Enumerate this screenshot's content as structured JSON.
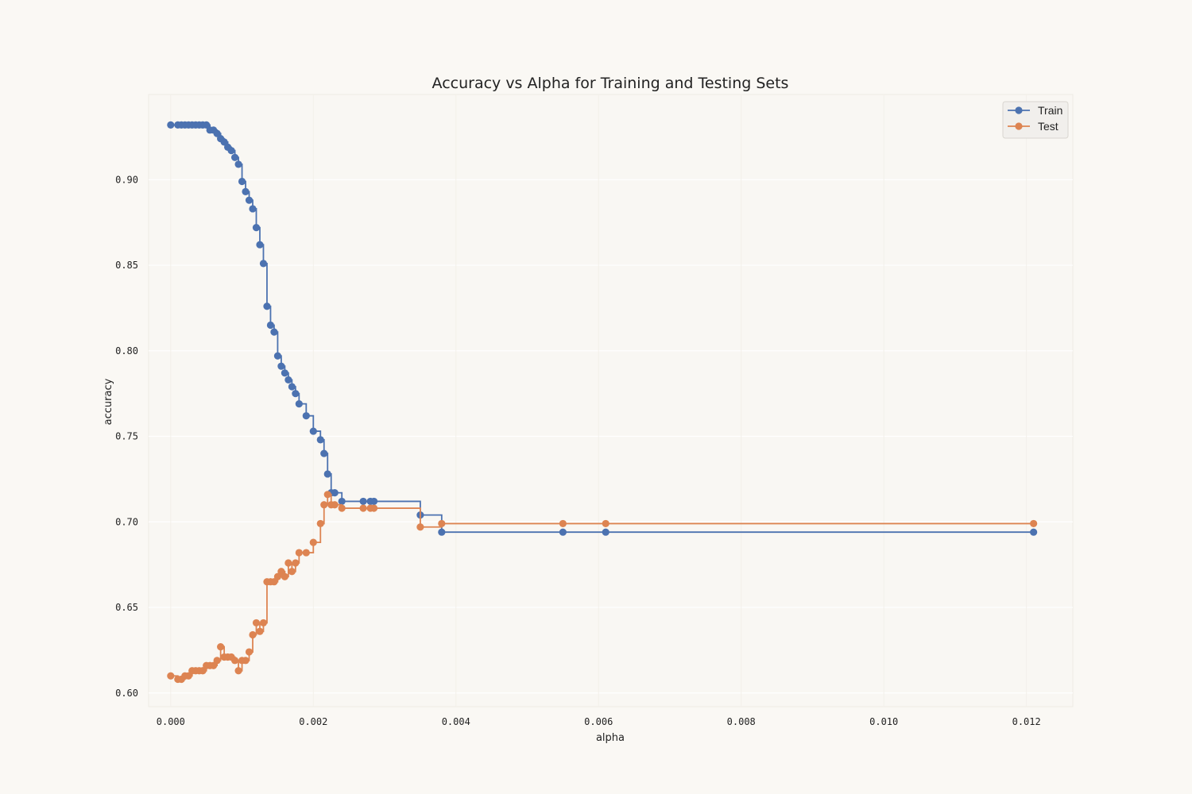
{
  "chart_data": {
    "type": "line",
    "title": "Accuracy vs Alpha for Training and Testing Sets",
    "xlabel": "alpha",
    "ylabel": "accuracy",
    "xlim": [
      -0.00031,
      0.01265
    ],
    "ylim": [
      0.592,
      0.9498
    ],
    "xticks": [
      0.0,
      0.002,
      0.004,
      0.006,
      0.008,
      0.01,
      0.012
    ],
    "xtick_labels": [
      "0.000",
      "0.002",
      "0.004",
      "0.006",
      "0.008",
      "0.010",
      "0.012"
    ],
    "yticks": [
      0.6,
      0.65,
      0.7,
      0.75,
      0.8,
      0.85,
      0.9
    ],
    "ytick_labels": [
      "0.60",
      "0.65",
      "0.70",
      "0.75",
      "0.80",
      "0.85",
      "0.90"
    ],
    "grid": true,
    "legend_position": "top-right",
    "drawstyle": "steps-post",
    "x": [
      0.0,
      0.0001,
      0.00015,
      0.0002,
      0.00025,
      0.0003,
      0.00035,
      0.0004,
      0.00045,
      0.0005,
      0.00055,
      0.0006,
      0.00065,
      0.0007,
      0.00075,
      0.0008,
      0.00085,
      0.0009,
      0.00095,
      0.001,
      0.00105,
      0.0011,
      0.00115,
      0.0012,
      0.00125,
      0.0013,
      0.00135,
      0.0014,
      0.00145,
      0.0015,
      0.00155,
      0.0016,
      0.00165,
      0.0017,
      0.00175,
      0.0018,
      0.0019,
      0.002,
      0.0021,
      0.00215,
      0.0022,
      0.00225,
      0.0023,
      0.0024,
      0.0027,
      0.0028,
      0.00285,
      0.0035,
      0.0038,
      0.0055,
      0.0061,
      0.0121
    ],
    "series": [
      {
        "name": "Train",
        "color": "#4c72b0",
        "values": [
          0.932,
          0.932,
          0.932,
          0.932,
          0.932,
          0.932,
          0.932,
          0.932,
          0.932,
          0.932,
          0.929,
          0.929,
          0.927,
          0.924,
          0.922,
          0.919,
          0.917,
          0.913,
          0.909,
          0.899,
          0.893,
          0.888,
          0.883,
          0.872,
          0.862,
          0.851,
          0.826,
          0.815,
          0.811,
          0.797,
          0.791,
          0.787,
          0.783,
          0.779,
          0.775,
          0.769,
          0.762,
          0.753,
          0.748,
          0.74,
          0.728,
          0.717,
          0.717,
          0.712,
          0.712,
          0.712,
          0.712,
          0.704,
          0.694,
          0.694,
          0.694,
          0.694
        ]
      },
      {
        "name": "Test",
        "color": "#dd8452",
        "values": [
          0.61,
          0.608,
          0.608,
          0.61,
          0.61,
          0.613,
          0.613,
          0.613,
          0.613,
          0.616,
          0.616,
          0.616,
          0.619,
          0.627,
          0.621,
          0.621,
          0.621,
          0.619,
          0.613,
          0.619,
          0.619,
          0.624,
          0.634,
          0.641,
          0.636,
          0.641,
          0.665,
          0.665,
          0.665,
          0.668,
          0.671,
          0.668,
          0.676,
          0.671,
          0.676,
          0.682,
          0.682,
          0.688,
          0.699,
          0.71,
          0.716,
          0.71,
          0.71,
          0.708,
          0.708,
          0.708,
          0.708,
          0.697,
          0.699,
          0.699,
          0.699,
          0.699
        ]
      }
    ]
  }
}
